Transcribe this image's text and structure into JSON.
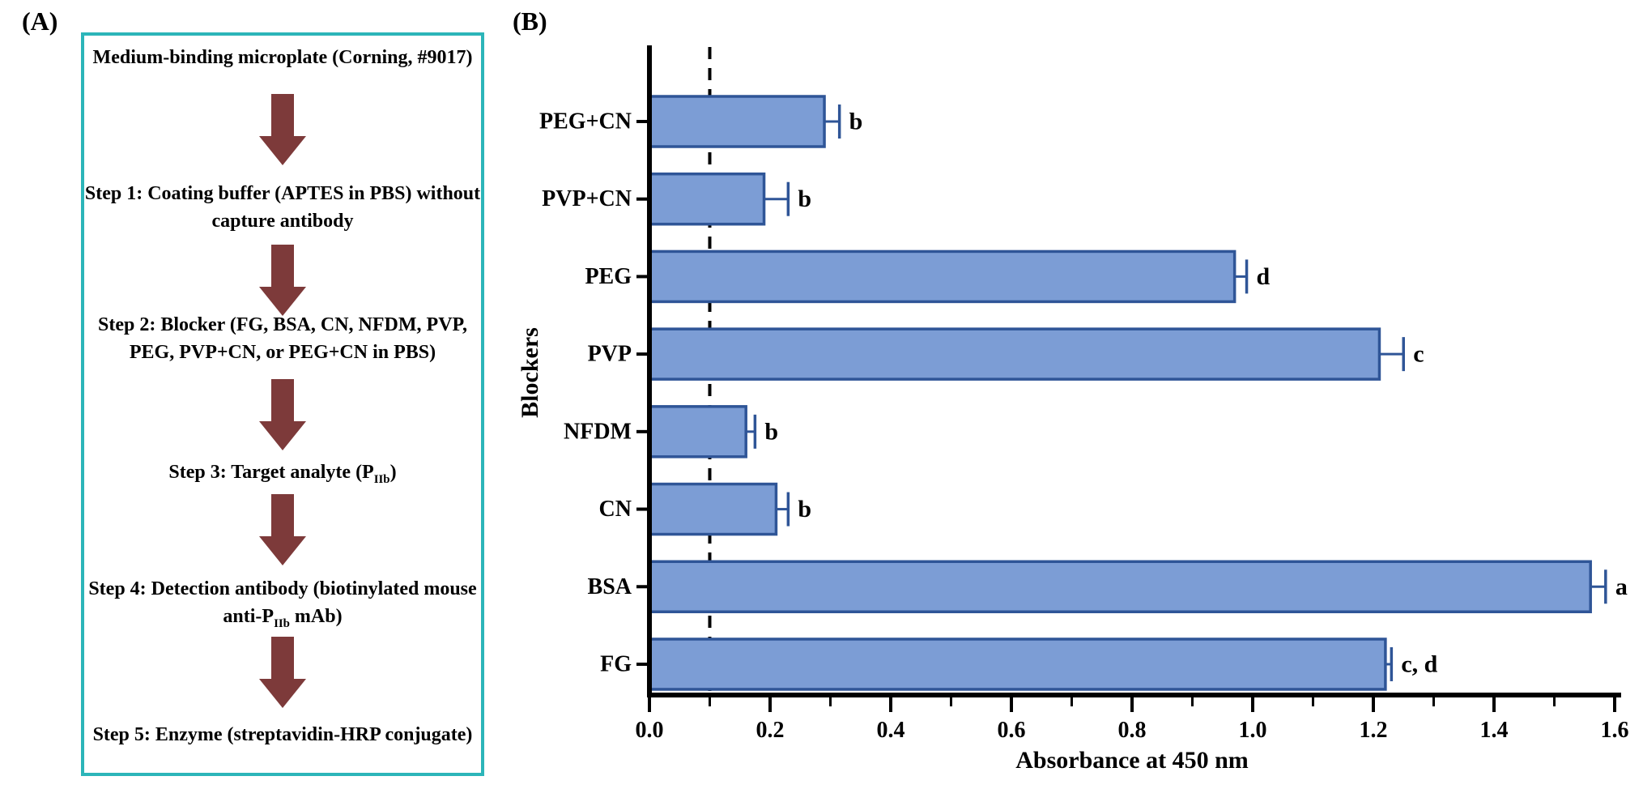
{
  "panel_a": {
    "label": "(A)",
    "title": "Medium-binding microplate (Corning, #9017)",
    "steps": [
      {
        "line1": "Step 1: Coating buffer (APTES in PBS) without",
        "line2": "capture antibody"
      },
      {
        "line1": "Step 2: Blocker (FG, BSA, CN, NFDM, PVP,",
        "line2": "PEG, PVP+CN, or PEG+CN in PBS)"
      },
      {
        "pre": "Step 3: Target analyte (P",
        "sub": "IIb",
        "post": ")"
      },
      {
        "line1": "Step 4: Detection antibody (biotinylated mouse",
        "line2_pre": "anti-P",
        "line2_sub": "IIb",
        "line2_post": " mAb)"
      },
      {
        "line1": "Step 5: Enzyme (streptavidin-HRP conjugate)"
      }
    ]
  },
  "panel_b": {
    "label": "(B)"
  },
  "chart_data": {
    "type": "bar",
    "orientation": "horizontal",
    "xlabel": "Absorbance at 450 nm",
    "ylabel": "Blockers",
    "xlim": [
      0.0,
      1.6
    ],
    "xticks": [
      0.0,
      0.2,
      0.4,
      0.6,
      0.8,
      1.0,
      1.2,
      1.4,
      1.6
    ],
    "minor_tick_step": 0.1,
    "reference_line_x": 0.1,
    "grid": false,
    "legend": false,
    "categories_top_to_bottom": [
      "PEG+CN",
      "PVP+CN",
      "PEG",
      "PVP",
      "NFDM",
      "CN",
      "BSA",
      "FG"
    ],
    "values": [
      0.29,
      0.19,
      0.97,
      1.21,
      0.16,
      0.21,
      1.56,
      1.22
    ],
    "errors": [
      0.025,
      0.04,
      0.02,
      0.04,
      0.015,
      0.02,
      0.025,
      0.01
    ],
    "sig_letters": [
      "b",
      "b",
      "d",
      "c",
      "b",
      "b",
      "a",
      "c, d"
    ]
  },
  "colors": {
    "bar_fill": "#7c9dd5",
    "bar_stroke": "#2f5597",
    "error_bar": "#2f5597",
    "reference_line": "#000000",
    "axis": "#000000",
    "text": "#000000",
    "flow_arrow": "#7d3a3a",
    "panel_border": "#2cb5b9"
  }
}
